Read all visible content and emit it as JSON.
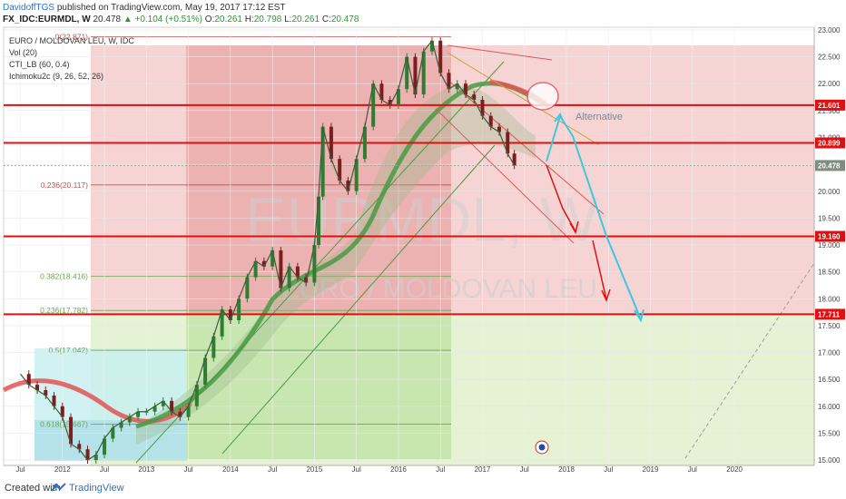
{
  "header": {
    "author": "DavidoffTGS",
    "published": "published on TradingView.com, May 19, 2017 17:12 EST",
    "symbol": "FX_IDC:EURMDL, W",
    "last": "20.478",
    "change": "▲ +0.104 (+0.51%)",
    "o_label": "O:",
    "o_value": "20.261",
    "h_label": "H:",
    "h_value": "20.798",
    "l_label": "L:",
    "l_value": "20.261",
    "c_label": "C:",
    "c_value": "20.478"
  },
  "legend": {
    "title": "EURO / MOLDOVAN LEU, W, IDC",
    "vol": "Vol (20)",
    "cti": "CTI_LB (60, 0.4)",
    "ichimoku": "Ichimoku2c (9, 26, 52, 26)"
  },
  "watermark": {
    "big": "EURMDL, W",
    "small": "EURO / MOLDOVAN LEU"
  },
  "annotation": "Alternative",
  "footer": {
    "created": "Created with",
    "brand": "TradingView"
  },
  "colors": {
    "candle_up": "#2e7d32",
    "candle_down": "#7a1f1f",
    "level_line": "#e01010",
    "fib_red": "#e8a7a7",
    "fib_green": "#c8e6b4",
    "alt_path": "#3cc8e0",
    "scenario_arrow": "#e01010"
  },
  "chart_data": {
    "type": "line",
    "x_ticks": [
      "Jul",
      "2012",
      "Jul",
      "2013",
      "Jul",
      "2014",
      "Jul",
      "2015",
      "Jul",
      "2016",
      "Jul",
      "2017",
      "Jul",
      "2018",
      "Jul",
      "2019",
      "Jul",
      "2020"
    ],
    "y_ticks": [
      "23.000",
      "22.500",
      "22.000",
      "21.500",
      "21.000",
      "20.500",
      "20.000",
      "19.500",
      "19.000",
      "18.500",
      "18.000",
      "17.500",
      "17.000",
      "16.500",
      "16.000",
      "15.500",
      "15.000"
    ],
    "ylim": [
      14.9,
      23.05
    ],
    "xlim": [
      2011.3,
      2020.95
    ],
    "price_labels": [
      {
        "value": 21.601,
        "text": "21.601",
        "color": "#e01010"
      },
      {
        "value": 20.899,
        "text": "20.899",
        "color": "#e01010"
      },
      {
        "value": 20.478,
        "text": "20.478",
        "color": "#808c80"
      },
      {
        "value": 19.16,
        "text": "19.160",
        "color": "#e01010"
      },
      {
        "value": 17.711,
        "text": "17.711",
        "color": "#e01010"
      }
    ],
    "horizontal_levels": [
      21.601,
      20.899,
      19.16,
      17.711
    ],
    "fib_levels": [
      {
        "text": "0(22.871)",
        "value": 22.871
      },
      {
        "text": "0.236(20.117)",
        "value": 20.117
      },
      {
        "text": "0.382(18.416)",
        "value": 18.416
      },
      {
        "text": "0.236(17.782)",
        "value": 17.782
      },
      {
        "text": "0.5(17.042)",
        "value": 17.042
      },
      {
        "text": "0.618(15.667)",
        "value": 15.667
      }
    ],
    "series": [
      {
        "x": [
          2011.5,
          2011.6,
          2011.7,
          2011.8,
          2011.9,
          2012.0,
          2012.1,
          2012.2,
          2012.3,
          2012.4,
          2012.5,
          2012.6,
          2012.7,
          2012.8,
          2012.9,
          2013.0,
          2013.1,
          2013.2,
          2013.3,
          2013.4,
          2013.5,
          2013.6,
          2013.7,
          2013.8,
          2013.9,
          2014.0,
          2014.1,
          2014.2,
          2014.3,
          2014.4,
          2014.5,
          2014.6,
          2014.7,
          2014.8,
          2014.9,
          2015.0,
          2015.05,
          2015.1,
          2015.2,
          2015.3,
          2015.4,
          2015.5,
          2015.6,
          2015.7,
          2015.8,
          2015.9,
          2016.0,
          2016.1,
          2016.2,
          2016.3,
          2016.4,
          2016.5,
          2016.6,
          2016.7,
          2016.8,
          2016.9,
          2017.0,
          2017.1,
          2017.2,
          2017.3,
          2017.38
        ],
        "values": [
          16.6,
          16.4,
          16.3,
          16.2,
          16.0,
          15.8,
          15.3,
          15.2,
          15.0,
          15.1,
          15.4,
          15.6,
          15.7,
          15.8,
          15.9,
          15.9,
          16.0,
          16.1,
          15.9,
          15.8,
          16.0,
          16.4,
          16.9,
          17.3,
          17.8,
          17.6,
          18.0,
          18.4,
          18.7,
          18.6,
          18.9,
          18.2,
          18.6,
          18.4,
          18.3,
          19.0,
          19.9,
          21.2,
          20.6,
          20.2,
          20.0,
          20.6,
          21.2,
          22.0,
          21.7,
          21.6,
          21.9,
          22.5,
          21.8,
          22.6,
          22.8,
          22.2,
          21.9,
          22.0,
          21.8,
          21.7,
          21.4,
          21.2,
          21.1,
          20.7,
          20.48
        ]
      }
    ]
  }
}
